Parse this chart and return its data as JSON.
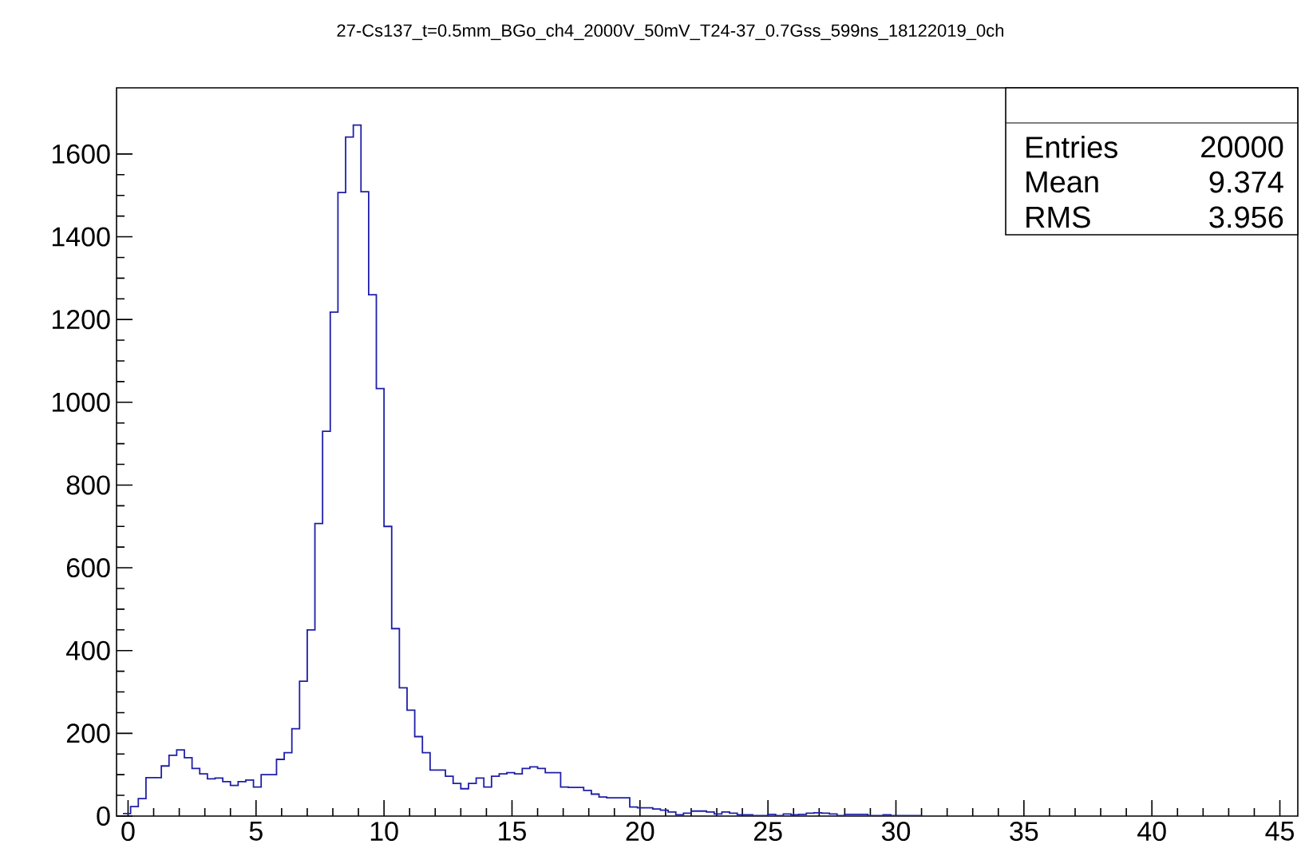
{
  "chart_data": {
    "type": "histogram",
    "title": "27-Cs137_t=0.5mm_BGo_ch4_2000V_50mV_T24-37_0.7Gss_599ns_18122019_0ch",
    "bins": [
      -0.2,
      0.1,
      0.4,
      0.7,
      1.0,
      1.3,
      1.6,
      1.9,
      2.2,
      2.5,
      2.8,
      3.1,
      3.4,
      3.7,
      4.0,
      4.3,
      4.6,
      4.9,
      5.2,
      5.5,
      5.8,
      6.1,
      6.4,
      6.7,
      7.0,
      7.3,
      7.6,
      7.9,
      8.2,
      8.5,
      8.8,
      9.1,
      9.4,
      9.7,
      10.0,
      10.3,
      10.6,
      10.9,
      11.2,
      11.5,
      11.8,
      12.1,
      12.4,
      12.7,
      13.0,
      13.3,
      13.6,
      13.9,
      14.2,
      14.5,
      14.8,
      15.1,
      15.4,
      15.7,
      16.0,
      16.3,
      16.6,
      16.9,
      17.2,
      17.5,
      17.8,
      18.1,
      18.4,
      18.7,
      19.0,
      19.3,
      19.6,
      19.9,
      20.2,
      20.5,
      20.8,
      21.1,
      21.4,
      21.7,
      22.0,
      22.3,
      22.6,
      22.9,
      23.2,
      23.5,
      23.8,
      24.1,
      24.4,
      24.7,
      25.0,
      25.3,
      25.6,
      25.9,
      26.2,
      26.5,
      26.8,
      27.1,
      27.4,
      27.7,
      28.0,
      28.3,
      28.6,
      28.9,
      29.2,
      29.5,
      29.8,
      30.1,
      30.4,
      30.7,
      31.0
    ],
    "values": [
      6,
      23,
      42,
      93,
      93,
      121,
      147,
      160,
      141,
      115,
      102,
      90,
      92,
      83,
      74,
      83,
      87,
      70,
      100,
      100,
      137,
      153,
      211,
      326,
      450,
      707,
      930,
      1218,
      1507,
      1641,
      1670,
      1509,
      1260,
      1033,
      700,
      453,
      310,
      256,
      192,
      153,
      111,
      111,
      96,
      79,
      66,
      79,
      92,
      70,
      96,
      102,
      105,
      102,
      115,
      119,
      115,
      105,
      105,
      70,
      69,
      69,
      62,
      53,
      46,
      44,
      44,
      44,
      22,
      20,
      20,
      17,
      14,
      10,
      3,
      7,
      12,
      12,
      10,
      5,
      10,
      7,
      3,
      3,
      1,
      1,
      4,
      1,
      5,
      3,
      4,
      7,
      8,
      7,
      5,
      1,
      4,
      4,
      4,
      1,
      1,
      3,
      1,
      1,
      1,
      1
    ],
    "color": "#1f1fa8",
    "xlim": [
      -0.45,
      45.7
    ],
    "ylim": [
      0,
      1760
    ],
    "xticks": [
      0,
      5,
      10,
      15,
      20,
      25,
      30,
      35,
      40,
      45
    ],
    "yticks": [
      0,
      200,
      400,
      600,
      800,
      1000,
      1200,
      1400,
      1600
    ],
    "annotations": [
      "Entries",
      "20000",
      "Mean",
      "9.374",
      "RMS",
      "3.956"
    ]
  }
}
